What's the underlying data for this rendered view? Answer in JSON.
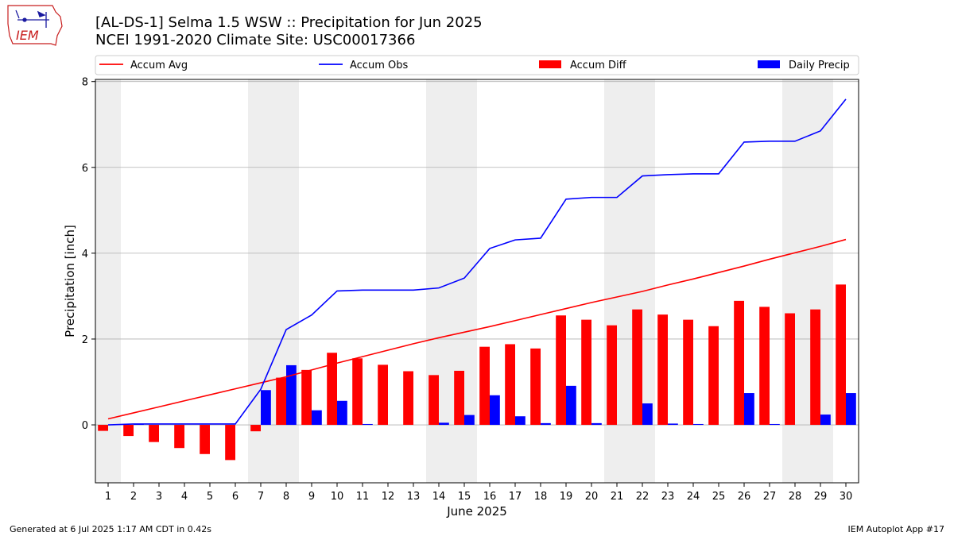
{
  "header": {
    "title": "[AL-DS-1] Selma 1.5 WSW :: Precipitation for Jun 2025",
    "subtitle": "NCEI 1991-2020 Climate Site: USC00017366"
  },
  "logo": {
    "text": "IEM"
  },
  "footer": {
    "left": "Generated at 6 Jul 2025 1:17 AM CDT in 0.42s",
    "right": "IEM Autoplot App #17"
  },
  "colors": {
    "avg": "#ff0000",
    "obs": "#0000ff",
    "diff": "#ff0000",
    "daily": "#0000ff",
    "weekend_shade": "#eeeeee",
    "grid": "#b0b0b0"
  },
  "chart_data": {
    "type": "bar",
    "xlabel": "June 2025",
    "ylabel": "Precipitation [inch]",
    "x": [
      1,
      2,
      3,
      4,
      5,
      6,
      7,
      8,
      9,
      10,
      11,
      12,
      13,
      14,
      15,
      16,
      17,
      18,
      19,
      20,
      21,
      22,
      23,
      24,
      25,
      26,
      27,
      28,
      29,
      30
    ],
    "xlim": [
      0.5,
      30.5
    ],
    "ylim": [
      -1.35,
      8.05
    ],
    "yticks": [
      0,
      2,
      4,
      6,
      8
    ],
    "grid": "y",
    "legend_position": "top",
    "shaded_days": [
      [
        0.5,
        1.5
      ],
      [
        6.5,
        8.5
      ],
      [
        13.5,
        15.5
      ],
      [
        20.5,
        22.5
      ],
      [
        27.5,
        29.5
      ]
    ],
    "series": [
      {
        "name": "Accum Avg",
        "type": "line",
        "values": [
          0.14,
          0.28,
          0.42,
          0.56,
          0.7,
          0.84,
          0.98,
          1.12,
          1.28,
          1.44,
          1.59,
          1.74,
          1.89,
          2.03,
          2.16,
          2.29,
          2.43,
          2.57,
          2.71,
          2.85,
          2.98,
          3.11,
          3.26,
          3.4,
          3.55,
          3.7,
          3.86,
          4.01,
          4.16,
          4.32
        ]
      },
      {
        "name": "Accum Obs",
        "type": "line",
        "values": [
          0.0,
          0.02,
          0.02,
          0.02,
          0.02,
          0.02,
          0.83,
          2.22,
          2.56,
          3.12,
          3.14,
          3.14,
          3.14,
          3.19,
          3.42,
          4.11,
          4.31,
          4.35,
          5.26,
          5.3,
          5.3,
          5.8,
          5.83,
          5.85,
          5.85,
          6.59,
          6.61,
          6.61,
          6.85,
          7.59
        ]
      },
      {
        "name": "Accum Diff",
        "type": "bar",
        "values": [
          -0.14,
          -0.26,
          -0.4,
          -0.54,
          -0.68,
          -0.82,
          -0.15,
          1.1,
          1.28,
          1.68,
          1.55,
          1.4,
          1.25,
          1.16,
          1.26,
          1.82,
          1.88,
          1.78,
          2.55,
          2.45,
          2.32,
          2.69,
          2.57,
          2.45,
          2.3,
          2.89,
          2.75,
          2.6,
          2.69,
          3.27
        ]
      },
      {
        "name": "Daily Precip",
        "type": "bar",
        "values": [
          0.0,
          0.02,
          0.0,
          0.0,
          0.0,
          0.0,
          0.81,
          1.39,
          0.34,
          0.56,
          0.02,
          0.0,
          0.0,
          0.05,
          0.23,
          0.69,
          0.2,
          0.04,
          0.91,
          0.04,
          0.0,
          0.5,
          0.03,
          0.02,
          0.0,
          0.74,
          0.02,
          0.0,
          0.24,
          0.74
        ]
      }
    ]
  }
}
